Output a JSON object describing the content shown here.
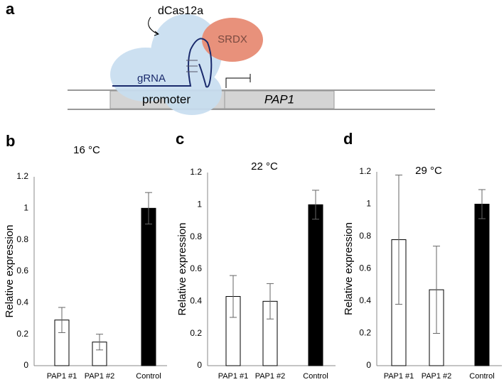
{
  "diagram": {
    "panel": "a",
    "protein": "dCas12a",
    "domain": "SRDX",
    "guide": "gRNA",
    "promoter": "promoter",
    "gene": "PAP1"
  },
  "chart_data": [
    {
      "type": "bar",
      "panel": "b",
      "title": "16 °C",
      "ylabel": "Relative expression",
      "categories": [
        "PAP1 #1",
        "PAP1 #2",
        "Control"
      ],
      "values": [
        0.29,
        0.15,
        1.0
      ],
      "errors": [
        0.08,
        0.05,
        0.1
      ],
      "colors": [
        "#ffffff",
        "#ffffff",
        "#000000"
      ],
      "ylim": [
        0,
        1.2
      ],
      "yticks": [
        0,
        0.2,
        0.4,
        0.6,
        0.8,
        1,
        1.2
      ],
      "grid": false
    },
    {
      "type": "bar",
      "panel": "c",
      "title": "22 °C",
      "ylabel": "Relative expression",
      "categories": [
        "PAP1 #1",
        "PAP1 #2",
        "Control"
      ],
      "values": [
        0.43,
        0.4,
        1.0
      ],
      "errors": [
        0.13,
        0.11,
        0.09
      ],
      "colors": [
        "#ffffff",
        "#ffffff",
        "#000000"
      ],
      "ylim": [
        0,
        1.2
      ],
      "yticks": [
        0,
        0.2,
        0.4,
        0.6,
        0.8,
        1,
        1.2
      ],
      "grid": false
    },
    {
      "type": "bar",
      "panel": "d",
      "title": "29 °C",
      "ylabel": "Relative expression",
      "categories": [
        "PAP1 #1",
        "PAP1 #2",
        "Control"
      ],
      "values": [
        0.78,
        0.47,
        1.0
      ],
      "errors": [
        0.4,
        0.27,
        0.09
      ],
      "colors": [
        "#ffffff",
        "#ffffff",
        "#000000"
      ],
      "ylim": [
        0,
        1.2
      ],
      "yticks": [
        0,
        0.2,
        0.4,
        0.6,
        0.8,
        1,
        1.2
      ],
      "grid": false
    }
  ]
}
